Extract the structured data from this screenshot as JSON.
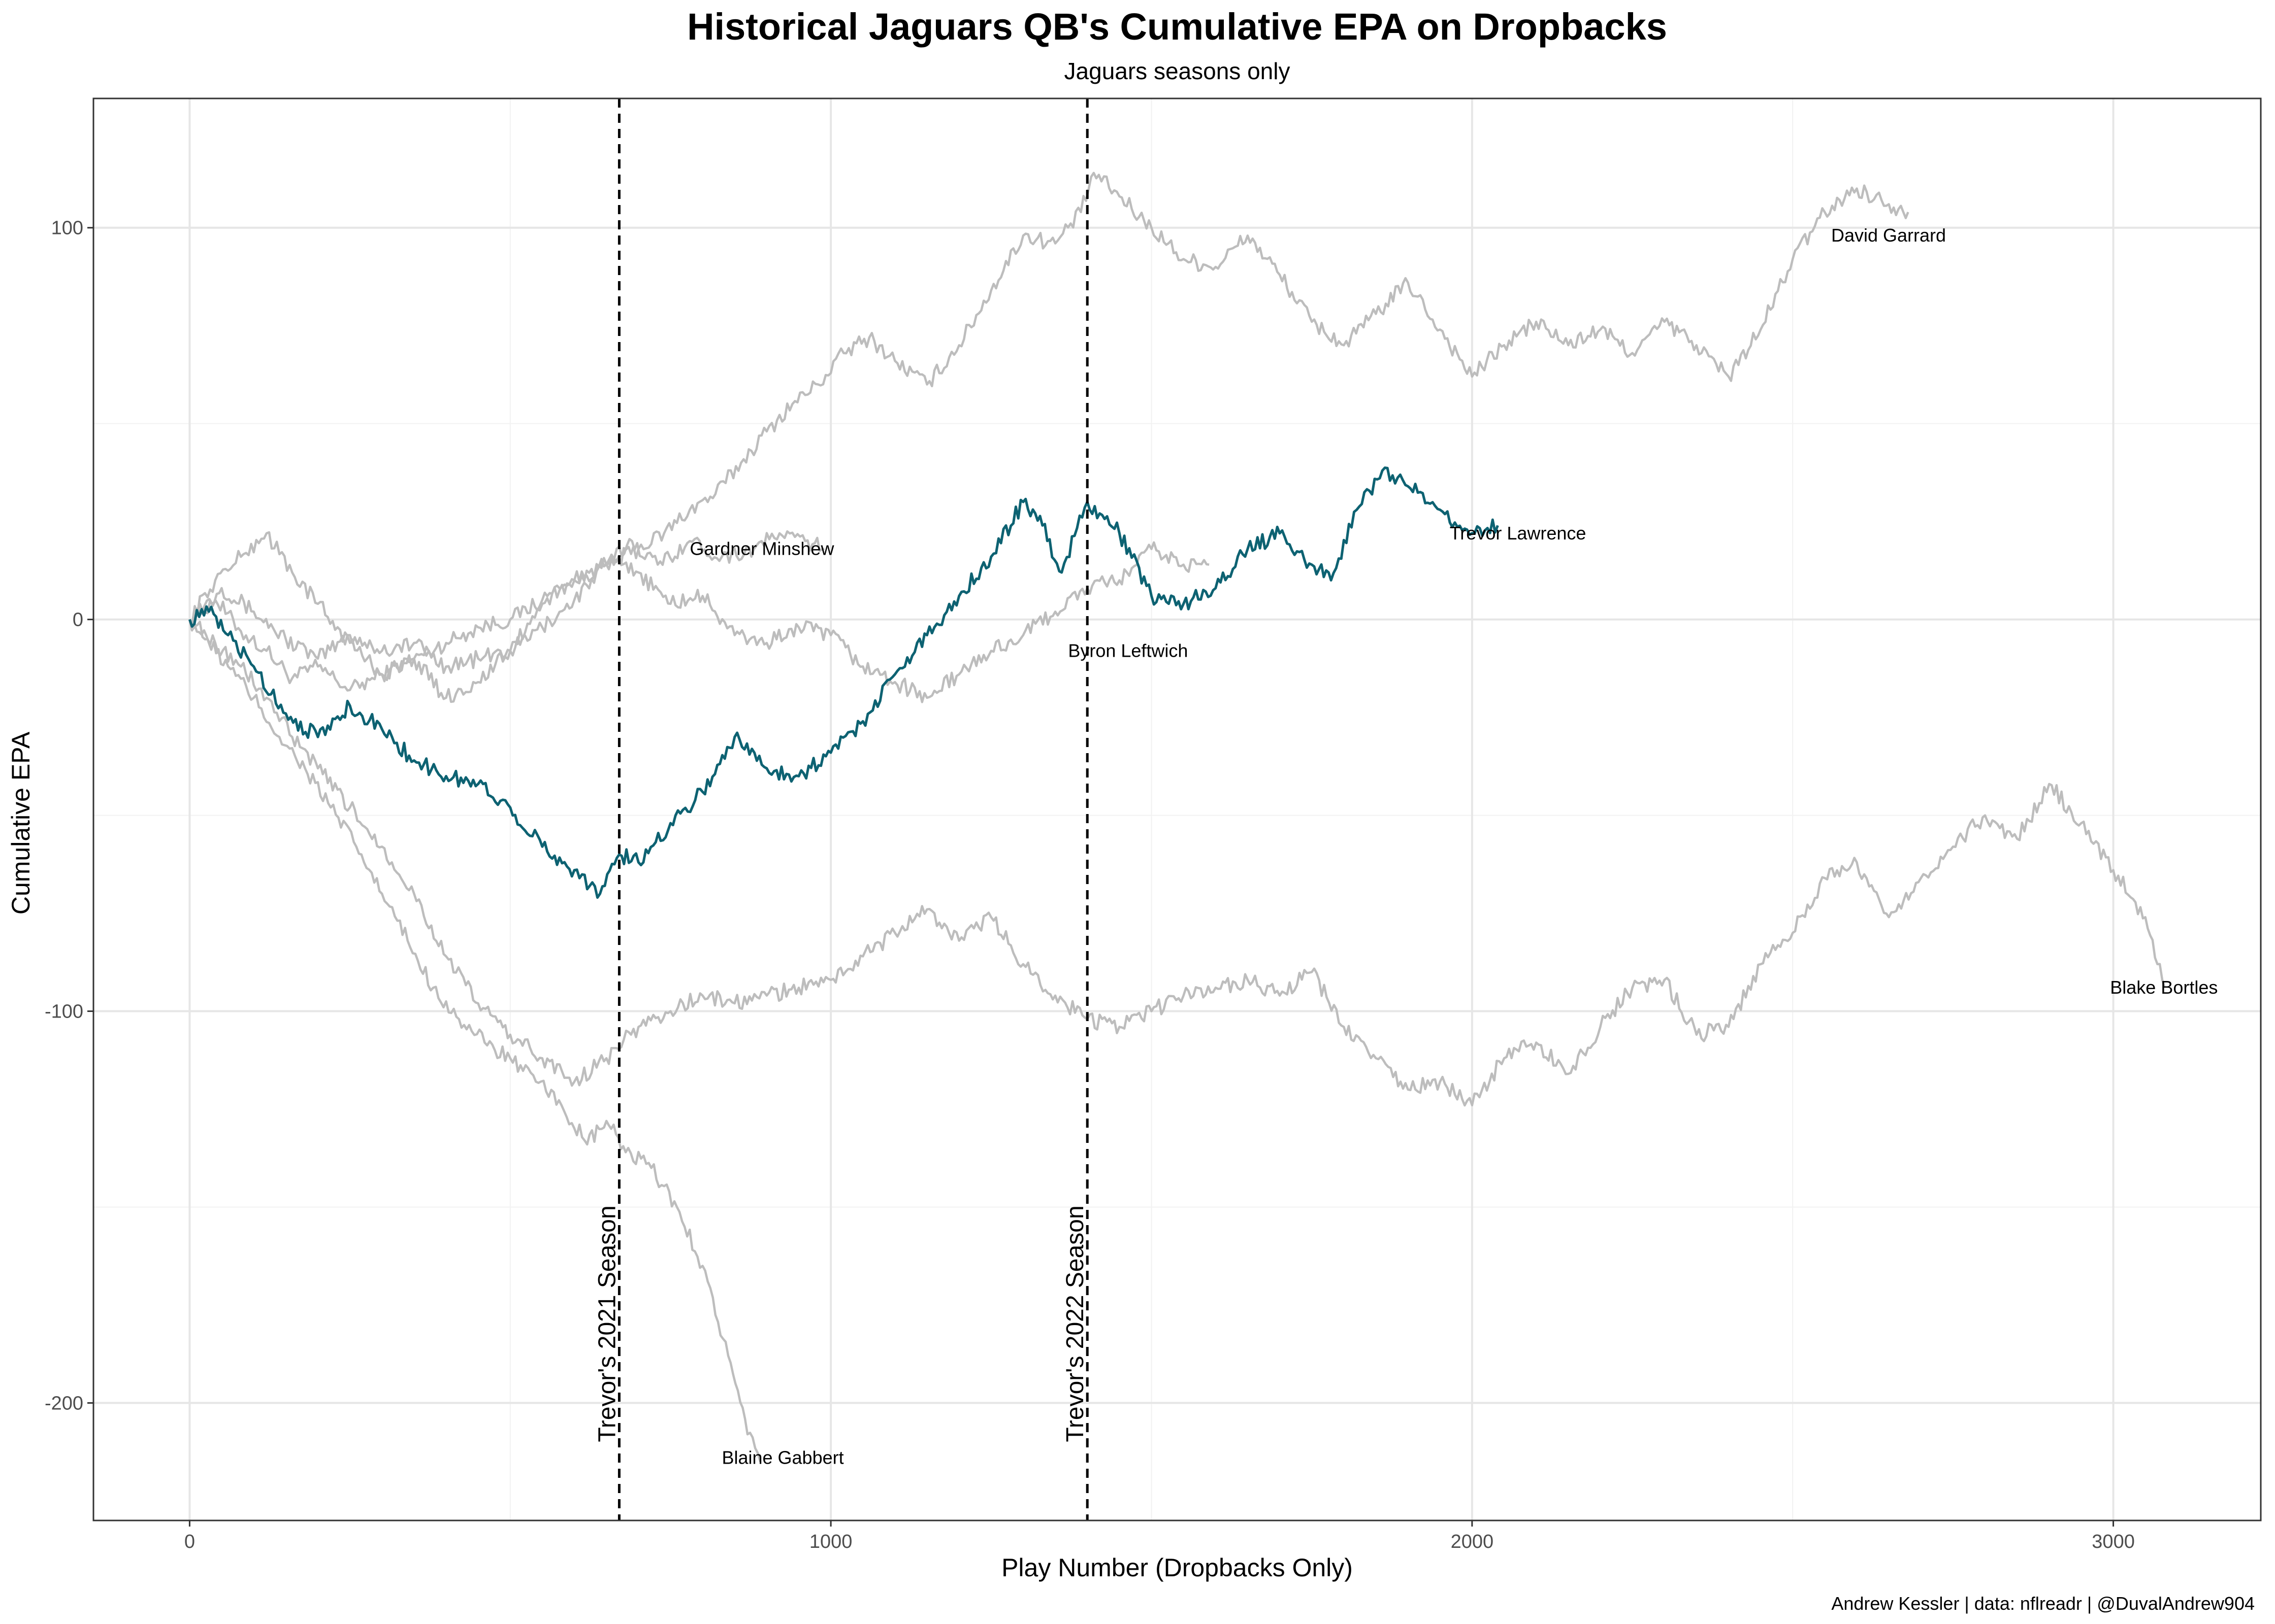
{
  "chart_data": {
    "type": "line",
    "title": "Historical Jaguars QB's Cumulative EPA on Dropbacks",
    "subtitle": "Jaguars seasons only",
    "xlabel": "Play Number (Dropbacks Only)",
    "ylabel": "Cumulative EPA",
    "caption": "Andrew Kessler | data: nflreadr | @DuvalAndrew904",
    "xlim": [
      -150,
      3230
    ],
    "ylim": [
      -230,
      133
    ],
    "x_ticks": [
      0,
      1000,
      2000,
      3000
    ],
    "y_ticks": [
      -200,
      -100,
      0,
      100
    ],
    "grid": true,
    "legend": "none",
    "highlight_color": "#0d6272",
    "other_color": "#bdbdbd",
    "vlines": [
      {
        "x": 670,
        "label": "Trevor's 2021 Season"
      },
      {
        "x": 1400,
        "label": "Trevor's 2022 Season"
      }
    ],
    "series": [
      {
        "name": "David Garrard",
        "highlight": false,
        "label_point": [
          2560,
          98
        ],
        "points": [
          [
            0,
            0
          ],
          [
            40,
            5
          ],
          [
            80,
            -3
          ],
          [
            120,
            -8
          ],
          [
            160,
            -15
          ],
          [
            200,
            -12
          ],
          [
            250,
            -18
          ],
          [
            300,
            -14
          ],
          [
            350,
            -10
          ],
          [
            400,
            -6
          ],
          [
            450,
            -2
          ],
          [
            500,
            0
          ],
          [
            550,
            5
          ],
          [
            600,
            10
          ],
          [
            650,
            14
          ],
          [
            700,
            18
          ],
          [
            740,
            22
          ],
          [
            780,
            28
          ],
          [
            820,
            32
          ],
          [
            860,
            40
          ],
          [
            900,
            48
          ],
          [
            940,
            55
          ],
          [
            980,
            60
          ],
          [
            1020,
            68
          ],
          [
            1060,
            72
          ],
          [
            1100,
            66
          ],
          [
            1150,
            60
          ],
          [
            1200,
            70
          ],
          [
            1250,
            84
          ],
          [
            1300,
            98
          ],
          [
            1350,
            96
          ],
          [
            1390,
            104
          ],
          [
            1410,
            114
          ],
          [
            1450,
            108
          ],
          [
            1500,
            100
          ],
          [
            1550,
            92
          ],
          [
            1600,
            90
          ],
          [
            1650,
            98
          ],
          [
            1700,
            88
          ],
          [
            1750,
            76
          ],
          [
            1800,
            70
          ],
          [
            1850,
            78
          ],
          [
            1900,
            86
          ],
          [
            1950,
            74
          ],
          [
            2000,
            62
          ],
          [
            2050,
            70
          ],
          [
            2100,
            76
          ],
          [
            2150,
            70
          ],
          [
            2200,
            74
          ],
          [
            2250,
            68
          ],
          [
            2300,
            76
          ],
          [
            2350,
            70
          ],
          [
            2400,
            62
          ],
          [
            2450,
            74
          ],
          [
            2500,
            92
          ],
          [
            2550,
            104
          ],
          [
            2600,
            110
          ],
          [
            2650,
            106
          ],
          [
            2680,
            104
          ]
        ]
      },
      {
        "name": "Gardner Minshew",
        "highlight": false,
        "label_point": [
          780,
          18
        ],
        "points": [
          [
            0,
            0
          ],
          [
            50,
            8
          ],
          [
            100,
            2
          ],
          [
            150,
            -5
          ],
          [
            200,
            -10
          ],
          [
            250,
            -4
          ],
          [
            300,
            -8
          ],
          [
            350,
            -6
          ],
          [
            400,
            -12
          ],
          [
            450,
            -10
          ],
          [
            500,
            -8
          ],
          [
            550,
            -2
          ],
          [
            600,
            5
          ],
          [
            650,
            14
          ],
          [
            690,
            20
          ],
          [
            730,
            14
          ],
          [
            780,
            20
          ],
          [
            830,
            16
          ],
          [
            880,
            18
          ],
          [
            920,
            22
          ],
          [
            960,
            20
          ],
          [
            990,
            18
          ]
        ]
      },
      {
        "name": "Byron Leftwich",
        "highlight": false,
        "label_point": [
          1370,
          -8
        ],
        "points": [
          [
            0,
            0
          ],
          [
            40,
            10
          ],
          [
            80,
            16
          ],
          [
            120,
            22
          ],
          [
            160,
            12
          ],
          [
            200,
            4
          ],
          [
            250,
            -6
          ],
          [
            300,
            -14
          ],
          [
            350,
            -10
          ],
          [
            400,
            -20
          ],
          [
            450,
            -16
          ],
          [
            500,
            -8
          ],
          [
            550,
            4
          ],
          [
            600,
            10
          ],
          [
            650,
            14
          ],
          [
            700,
            12
          ],
          [
            750,
            4
          ],
          [
            800,
            6
          ],
          [
            850,
            -4
          ],
          [
            900,
            -6
          ],
          [
            950,
            -2
          ],
          [
            1000,
            -4
          ],
          [
            1050,
            -12
          ],
          [
            1100,
            -16
          ],
          [
            1150,
            -20
          ],
          [
            1200,
            -14
          ],
          [
            1250,
            -8
          ],
          [
            1300,
            -4
          ],
          [
            1350,
            2
          ],
          [
            1400,
            8
          ],
          [
            1450,
            10
          ],
          [
            1500,
            18
          ],
          [
            1550,
            14
          ],
          [
            1590,
            14
          ]
        ]
      },
      {
        "name": "Blaine Gabbert",
        "highlight": false,
        "label_point": [
          830,
          -214
        ],
        "points": [
          [
            0,
            0
          ],
          [
            30,
            -6
          ],
          [
            60,
            -12
          ],
          [
            100,
            -20
          ],
          [
            140,
            -30
          ],
          [
            180,
            -38
          ],
          [
            220,
            -48
          ],
          [
            260,
            -58
          ],
          [
            300,
            -70
          ],
          [
            340,
            -82
          ],
          [
            380,
            -94
          ],
          [
            420,
            -102
          ],
          [
            460,
            -108
          ],
          [
            500,
            -112
          ],
          [
            540,
            -118
          ],
          [
            580,
            -124
          ],
          [
            620,
            -134
          ],
          [
            650,
            -128
          ],
          [
            680,
            -136
          ],
          [
            720,
            -140
          ],
          [
            760,
            -150
          ],
          [
            800,
            -165
          ],
          [
            840,
            -188
          ],
          [
            870,
            -208
          ],
          [
            890,
            -215
          ]
        ]
      },
      {
        "name": "Blake Bortles",
        "highlight": false,
        "label_point": [
          2995,
          -94
        ],
        "points": [
          [
            0,
            0
          ],
          [
            40,
            -6
          ],
          [
            80,
            -12
          ],
          [
            120,
            -20
          ],
          [
            160,
            -30
          ],
          [
            200,
            -38
          ],
          [
            250,
            -48
          ],
          [
            300,
            -58
          ],
          [
            350,
            -70
          ],
          [
            400,
            -86
          ],
          [
            450,
            -98
          ],
          [
            500,
            -106
          ],
          [
            550,
            -112
          ],
          [
            600,
            -118
          ],
          [
            650,
            -112
          ],
          [
            700,
            -104
          ],
          [
            750,
            -100
          ],
          [
            800,
            -96
          ],
          [
            850,
            -98
          ],
          [
            900,
            -96
          ],
          [
            950,
            -94
          ],
          [
            1000,
            -92
          ],
          [
            1050,
            -86
          ],
          [
            1100,
            -80
          ],
          [
            1150,
            -74
          ],
          [
            1200,
            -82
          ],
          [
            1250,
            -76
          ],
          [
            1300,
            -88
          ],
          [
            1350,
            -96
          ],
          [
            1400,
            -102
          ],
          [
            1450,
            -104
          ],
          [
            1500,
            -100
          ],
          [
            1550,
            -96
          ],
          [
            1600,
            -94
          ],
          [
            1650,
            -92
          ],
          [
            1700,
            -96
          ],
          [
            1750,
            -90
          ],
          [
            1800,
            -104
          ],
          [
            1850,
            -112
          ],
          [
            1900,
            -120
          ],
          [
            1950,
            -118
          ],
          [
            2000,
            -124
          ],
          [
            2050,
            -112
          ],
          [
            2100,
            -108
          ],
          [
            2150,
            -116
          ],
          [
            2200,
            -104
          ],
          [
            2250,
            -94
          ],
          [
            2300,
            -92
          ],
          [
            2350,
            -106
          ],
          [
            2400,
            -104
          ],
          [
            2450,
            -88
          ],
          [
            2500,
            -80
          ],
          [
            2550,
            -66
          ],
          [
            2600,
            -62
          ],
          [
            2650,
            -76
          ],
          [
            2700,
            -66
          ],
          [
            2750,
            -58
          ],
          [
            2800,
            -50
          ],
          [
            2850,
            -56
          ],
          [
            2900,
            -42
          ],
          [
            2950,
            -52
          ],
          [
            3000,
            -64
          ],
          [
            3050,
            -76
          ],
          [
            3080,
            -94
          ]
        ]
      },
      {
        "name": "Trevor Lawrence",
        "highlight": true,
        "label_point": [
          1965,
          22
        ],
        "points": [
          [
            0,
            0
          ],
          [
            30,
            2
          ],
          [
            60,
            -4
          ],
          [
            100,
            -12
          ],
          [
            150,
            -24
          ],
          [
            200,
            -30
          ],
          [
            250,
            -22
          ],
          [
            300,
            -28
          ],
          [
            350,
            -36
          ],
          [
            400,
            -40
          ],
          [
            450,
            -42
          ],
          [
            500,
            -48
          ],
          [
            550,
            -58
          ],
          [
            600,
            -64
          ],
          [
            640,
            -70
          ],
          [
            670,
            -60
          ],
          [
            700,
            -62
          ],
          [
            750,
            -52
          ],
          [
            800,
            -44
          ],
          [
            850,
            -30
          ],
          [
            900,
            -38
          ],
          [
            950,
            -40
          ],
          [
            1000,
            -34
          ],
          [
            1050,
            -26
          ],
          [
            1100,
            -14
          ],
          [
            1150,
            -4
          ],
          [
            1200,
            6
          ],
          [
            1250,
            16
          ],
          [
            1300,
            30
          ],
          [
            1330,
            24
          ],
          [
            1360,
            12
          ],
          [
            1400,
            30
          ],
          [
            1450,
            22
          ],
          [
            1500,
            6
          ],
          [
            1550,
            4
          ],
          [
            1600,
            8
          ],
          [
            1650,
            18
          ],
          [
            1700,
            22
          ],
          [
            1750,
            14
          ],
          [
            1780,
            10
          ],
          [
            1820,
            28
          ],
          [
            1860,
            38
          ],
          [
            1900,
            34
          ],
          [
            1950,
            28
          ],
          [
            2000,
            22
          ],
          [
            2040,
            24
          ]
        ]
      }
    ]
  }
}
